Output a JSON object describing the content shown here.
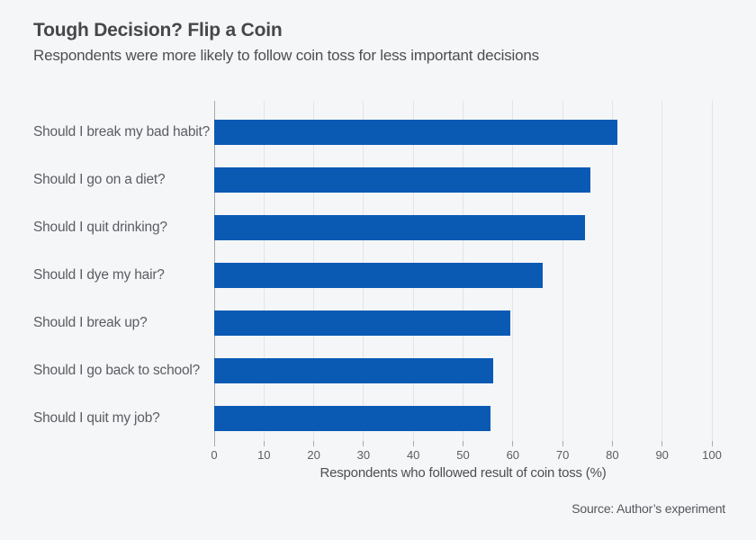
{
  "header": {
    "title": "Tough Decision? Flip a Coin",
    "subtitle": "Respondents were more likely to follow coin toss for less important decisions"
  },
  "footer": {
    "source": "Source: Author’s experiment"
  },
  "chart_data": {
    "type": "bar",
    "orientation": "horizontal",
    "title": "Tough Decision? Flip a Coin",
    "subtitle": "Respondents were more likely to follow coin toss for less important decisions",
    "categories": [
      "Should I break my bad habit?",
      "Should I go on a diet?",
      "Should I quit drinking?",
      "Should I dye my hair?",
      "Should I break up?",
      "Should I go back to school?",
      "Should I quit my job?"
    ],
    "values": [
      81,
      75.5,
      74.5,
      66,
      59.5,
      56,
      55.5
    ],
    "xlabel": "Respondents who followed result of coin toss (%)",
    "xlim": [
      0,
      100
    ],
    "xticks": [
      0,
      10,
      20,
      30,
      40,
      50,
      60,
      70,
      80,
      90,
      100
    ],
    "grid": "vertical-only",
    "legend": "none",
    "bar_color": "#0a5ab4",
    "background_color": "#f4f6f8",
    "source": "Source: Author’s experiment"
  }
}
